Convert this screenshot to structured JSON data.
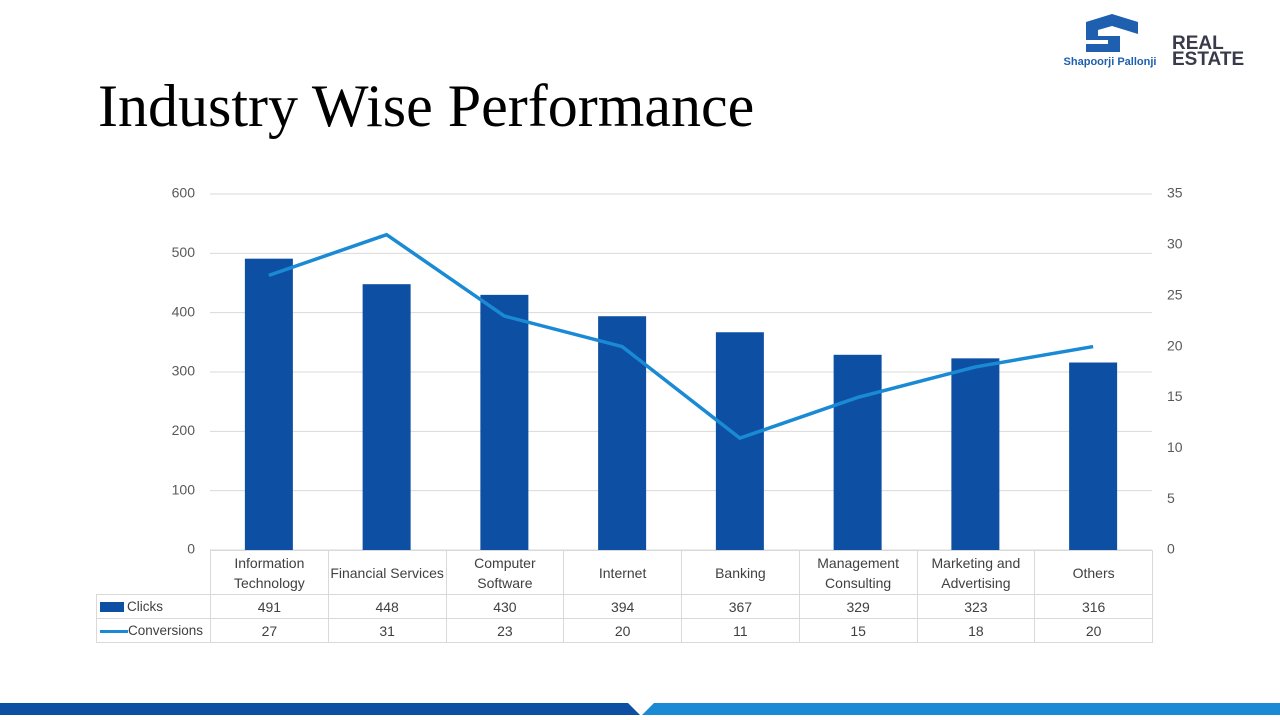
{
  "header": {
    "title": "Industry Wise Performance",
    "logo_name": "Shapoorji Pallonji",
    "logo_line1": "REAL",
    "logo_line2": "ESTATE"
  },
  "chart_data": {
    "type": "bar",
    "categories": [
      "Information Technology",
      "Financial Services",
      "Computer Software",
      "Internet",
      "Banking",
      "Management Consulting",
      "Marketing and Advertising",
      "Others"
    ],
    "series": [
      {
        "name": "Clicks",
        "type": "bar",
        "color": "#0d4fa3",
        "values": [
          491,
          448,
          430,
          394,
          367,
          329,
          323,
          316
        ]
      },
      {
        "name": "Conversions",
        "type": "line",
        "axis": "y2",
        "color": "#1a8ad4",
        "values": [
          27,
          31,
          23,
          20,
          11,
          15,
          18,
          20
        ]
      }
    ],
    "ylim": [
      0,
      600
    ],
    "yticks": [
      0,
      100,
      200,
      300,
      400,
      500,
      600
    ],
    "y2lim": [
      0,
      35
    ],
    "y2ticks": [
      0,
      5,
      10,
      15,
      20,
      25,
      30,
      35
    ],
    "grid": true,
    "legend": "table"
  }
}
